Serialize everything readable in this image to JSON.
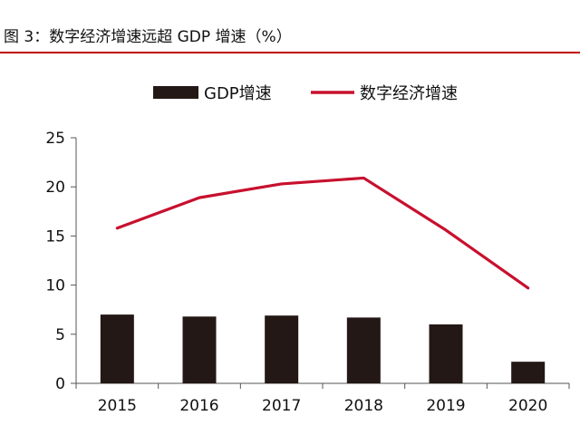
{
  "figure": {
    "title": "图 3：数字经济增速远超 GDP 增速（%）"
  },
  "chart_data": {
    "type": "bar",
    "categories": [
      "2015",
      "2016",
      "2017",
      "2018",
      "2019",
      "2020"
    ],
    "series": [
      {
        "name": "GDP增速",
        "type": "bar",
        "color": "#231815",
        "values": [
          7.0,
          6.8,
          6.9,
          6.7,
          6.0,
          2.2
        ]
      },
      {
        "name": "数字经济增速",
        "type": "line",
        "color": "#c8102e",
        "values": [
          15.8,
          18.9,
          20.3,
          20.9,
          15.6,
          9.7
        ]
      }
    ],
    "ylim": [
      0,
      25
    ],
    "yticks": [
      0,
      5,
      10,
      15,
      20,
      25
    ],
    "ytick_labels": [
      "0",
      "5",
      "10",
      "15",
      "20",
      "25"
    ],
    "legend": "top-center",
    "grid": false,
    "title": "",
    "xlabel": "",
    "ylabel": ""
  }
}
